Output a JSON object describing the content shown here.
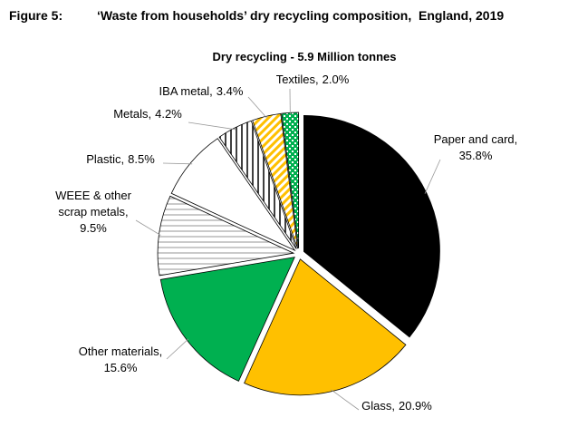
{
  "chart_data": {
    "type": "pie",
    "figure_label": "Figure 5:",
    "title": "‘Waste from households’ dry recycling composition,  England, 2019",
    "subtitle": "Dry recycling - 5.9 Million tonnes",
    "categories": [
      "Paper and card,",
      "Glass,",
      "Other materials,",
      "WEEE & other scrap metals,",
      "Plastic,",
      "Metals,",
      "IBA metal,",
      "Textiles,"
    ],
    "values": [
      35.8,
      20.9,
      15.6,
      9.5,
      8.5,
      4.2,
      3.4,
      2.0
    ],
    "value_labels": [
      "35.8%",
      "20.9%",
      "15.6%",
      "9.5%",
      "8.5%",
      "4.2%",
      "3.4%",
      "2.0%"
    ],
    "colors": [
      "#000000",
      "#ffc000",
      "#00b050",
      "#a6a6a6",
      "#ffffff",
      "#000000",
      "#ffc000",
      "#00b050"
    ],
    "patterns": [
      "solid",
      "solid",
      "solid",
      "horizontal",
      "solid",
      "vertical",
      "diagonal",
      "dots"
    ]
  }
}
